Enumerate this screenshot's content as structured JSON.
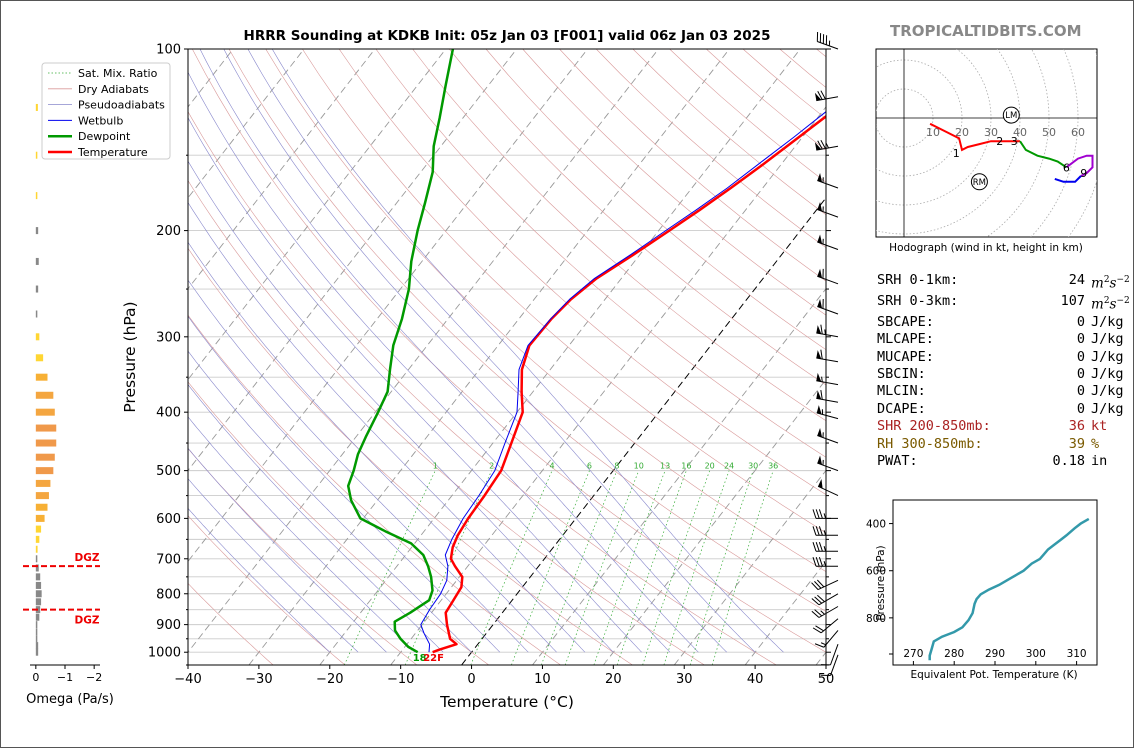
{
  "brand": "TROPICALTIDBITS.COM",
  "title": "HRRR Sounding at KDKB Init: 05z Jan 03 [F001] valid 06z Jan 03 2025",
  "chart_data": [
    {
      "type": "line",
      "name": "skewt",
      "xlabel": "Temperature (°C)",
      "ylabel": "Pressure (hPa)",
      "xlim": [
        -40,
        50
      ],
      "ylim": [
        1050,
        100
      ],
      "x_ticks": [
        -40,
        -30,
        -20,
        -10,
        0,
        10,
        20,
        30,
        40,
        50
      ],
      "x_tick_labels": [
        "−40",
        "−30",
        "−20",
        "−10",
        "0",
        "10",
        "20",
        "30",
        "40",
        "50"
      ],
      "y_ticks": [
        100,
        200,
        300,
        400,
        500,
        600,
        700,
        800,
        900,
        1000
      ],
      "mixing_ratio_labels": [
        "1",
        "2",
        "4",
        "6",
        "8",
        "10",
        "13",
        "16",
        "20",
        "24",
        "30",
        "36"
      ],
      "legend": [
        "Sat. Mix. Ratio",
        "Dry Adiabats",
        "Pseudoadiabats",
        "Wetbulb",
        "Dewpoint",
        "Temperature"
      ],
      "legend_position": "upper-left",
      "sfc_dewpoint_label": "18",
      "sfc_temp_label": "22F",
      "series": [
        {
          "name": "Temperature",
          "color": "#ff0000",
          "points": [
            [
              -5.5,
              1000
            ],
            [
              -4.8,
              990
            ],
            [
              -3.0,
              970
            ],
            [
              -4.5,
              950
            ],
            [
              -6.5,
              900
            ],
            [
              -8.0,
              860
            ],
            [
              -8.2,
              830
            ],
            [
              -8.6,
              780
            ],
            [
              -9.6,
              750
            ],
            [
              -11.8,
              720
            ],
            [
              -13.2,
              700
            ],
            [
              -14.2,
              670
            ],
            [
              -14.8,
              640
            ],
            [
              -15.2,
              600
            ],
            [
              -15.4,
              550
            ],
            [
              -15.8,
              500
            ],
            [
              -17.4,
              450
            ],
            [
              -19.2,
              400
            ],
            [
              -21.6,
              370
            ],
            [
              -24.0,
              340
            ],
            [
              -25.6,
              310
            ],
            [
              -25.4,
              280
            ],
            [
              -24.8,
              260
            ],
            [
              -23.5,
              240
            ],
            [
              -21.0,
              220
            ],
            [
              -18.5,
              200
            ],
            [
              -16.5,
              185
            ],
            [
              -14.5,
              170
            ],
            [
              -12.5,
              155
            ],
            [
              -10.5,
              140
            ],
            [
              -8.3,
              125
            ],
            [
              -6.5,
              115
            ],
            [
              -4.8,
              105
            ],
            [
              -4.0,
              100
            ]
          ]
        },
        {
          "name": "Wetbulb",
          "color": "#0000ee",
          "points": [
            [
              -6.0,
              1000
            ],
            [
              -6.8,
              970
            ],
            [
              -8.8,
              930
            ],
            [
              -10.2,
              900
            ],
            [
              -10.6,
              850
            ],
            [
              -10.8,
              800
            ],
            [
              -11.4,
              760
            ],
            [
              -12.8,
              720
            ],
            [
              -14.4,
              690
            ],
            [
              -15.2,
              650
            ],
            [
              -15.9,
              600
            ],
            [
              -16.2,
              550
            ],
            [
              -16.7,
              500
            ],
            [
              -18.3,
              450
            ],
            [
              -20.0,
              400
            ],
            [
              -22.1,
              370
            ],
            [
              -24.4,
              340
            ],
            [
              -25.8,
              310
            ],
            [
              -25.5,
              280
            ],
            [
              -25.0,
              260
            ],
            [
              -23.8,
              240
            ],
            [
              -21.4,
              220
            ],
            [
              -19.0,
              200
            ],
            [
              -17.0,
              185
            ],
            [
              -15.0,
              170
            ],
            [
              -13.2,
              155
            ],
            [
              -11.2,
              140
            ],
            [
              -9.2,
              125
            ],
            [
              -7.4,
              115
            ],
            [
              -5.8,
              105
            ],
            [
              -5.0,
              100
            ]
          ]
        },
        {
          "name": "Dewpoint",
          "color": "#009900",
          "points": [
            [
              -7.6,
              1000
            ],
            [
              -9.5,
              980
            ],
            [
              -11.5,
              950
            ],
            [
              -13.2,
              920
            ],
            [
              -14.2,
              890
            ],
            [
              -13.0,
              860
            ],
            [
              -11.7,
              820
            ],
            [
              -12.3,
              790
            ],
            [
              -14.0,
              750
            ],
            [
              -15.6,
              720
            ],
            [
              -17.5,
              690
            ],
            [
              -20.5,
              660
            ],
            [
              -25.5,
              630
            ],
            [
              -30.4,
              600
            ],
            [
              -33.7,
              560
            ],
            [
              -35.7,
              530
            ],
            [
              -36.6,
              500
            ],
            [
              -37.8,
              470
            ],
            [
              -38.6,
              440
            ],
            [
              -39.6,
              400
            ],
            [
              -40.5,
              370
            ],
            [
              -42.6,
              340
            ],
            [
              -44.8,
              310
            ],
            [
              -46.5,
              280
            ],
            [
              -48.8,
              250
            ],
            [
              -51.5,
              225
            ],
            [
              -54.0,
              200
            ],
            [
              -56.0,
              180
            ],
            [
              -58.3,
              160
            ],
            [
              -61.0,
              145
            ],
            [
              -63.3,
              130
            ],
            [
              -66.0,
              115
            ],
            [
              -69.0,
              100
            ]
          ]
        }
      ],
      "wind_barbs": [
        {
          "p": 100,
          "dir": 290,
          "spd": 45
        },
        {
          "p": 120,
          "dir": 260,
          "spd": 70
        },
        {
          "p": 145,
          "dir": 260,
          "spd": 75
        },
        {
          "p": 170,
          "dir": 290,
          "spd": 55
        },
        {
          "p": 190,
          "dir": 290,
          "spd": 55
        },
        {
          "p": 215,
          "dir": 290,
          "spd": 55
        },
        {
          "p": 245,
          "dir": 290,
          "spd": 60
        },
        {
          "p": 275,
          "dir": 290,
          "spd": 60
        },
        {
          "p": 300,
          "dir": 280,
          "spd": 65
        },
        {
          "p": 330,
          "dir": 280,
          "spd": 60
        },
        {
          "p": 360,
          "dir": 280,
          "spd": 55
        },
        {
          "p": 385,
          "dir": 280,
          "spd": 60
        },
        {
          "p": 410,
          "dir": 285,
          "spd": 55
        },
        {
          "p": 450,
          "dir": 290,
          "spd": 55
        },
        {
          "p": 500,
          "dir": 290,
          "spd": 55
        },
        {
          "p": 550,
          "dir": 295,
          "spd": 50
        },
        {
          "p": 600,
          "dir": 270,
          "spd": 35
        },
        {
          "p": 640,
          "dir": 270,
          "spd": 35
        },
        {
          "p": 680,
          "dir": 270,
          "spd": 35
        },
        {
          "p": 720,
          "dir": 270,
          "spd": 35
        },
        {
          "p": 760,
          "dir": 245,
          "spd": 30
        },
        {
          "p": 800,
          "dir": 240,
          "spd": 30
        },
        {
          "p": 840,
          "dir": 240,
          "spd": 25
        },
        {
          "p": 880,
          "dir": 230,
          "spd": 20
        },
        {
          "p": 920,
          "dir": 220,
          "spd": 15
        },
        {
          "p": 970,
          "dir": 200,
          "spd": 10
        },
        {
          "p": 1010,
          "dir": 200,
          "spd": 10
        }
      ]
    },
    {
      "type": "bar",
      "name": "omega",
      "xlabel": "Omega (Pa/s)",
      "x_tick_labels": [
        "0",
        "−1",
        "−2"
      ],
      "xlim": [
        0.2,
        -2.2
      ],
      "dgz_label": "DGZ",
      "dgz_levels": [
        720,
        850
      ],
      "levels": [
        1000,
        975,
        950,
        925,
        900,
        875,
        850,
        825,
        800,
        775,
        750,
        725,
        700,
        675,
        650,
        625,
        600,
        575,
        550,
        525,
        500,
        475,
        450,
        425,
        400,
        375,
        350,
        325,
        300,
        275,
        250,
        225,
        200,
        175,
        150,
        125
      ],
      "values": [
        -0.08,
        -0.08,
        -0.05,
        -0.03,
        -0.05,
        -0.12,
        -0.15,
        -0.18,
        -0.2,
        -0.18,
        -0.15,
        -0.1,
        -0.04,
        -0.06,
        -0.12,
        -0.18,
        -0.3,
        -0.4,
        -0.45,
        -0.5,
        -0.6,
        -0.65,
        -0.7,
        -0.7,
        -0.65,
        -0.6,
        -0.4,
        -0.25,
        -0.12,
        -0.05,
        -0.08,
        -0.1,
        -0.08,
        -0.04,
        -0.05,
        -0.07
      ],
      "colors": [
        "#888888",
        "#888888",
        "#888888",
        "#888888",
        "#888888",
        "#888888",
        "#888888",
        "#888888",
        "#888888",
        "#888888",
        "#888888",
        "#888888",
        "#888888",
        "#ffd633",
        "#ffd633",
        "#ffd633",
        "#f7b035",
        "#f7b035",
        "#f4a640",
        "#f4a640",
        "#f0994a",
        "#f0994a",
        "#f0994a",
        "#f0994a",
        "#f4a640",
        "#f4a640",
        "#f7b035",
        "#ffd633",
        "#ffd633",
        "#888888",
        "#888888",
        "#888888",
        "#888888",
        "#ffd633",
        "#ffd633",
        "#ffd633"
      ]
    },
    {
      "type": "line",
      "name": "hodograph",
      "xlabel": "Hodograph (wind in kt, height in km)",
      "ring_labels": [
        "10",
        "20",
        "30",
        "40",
        "50",
        "60"
      ],
      "storm_motion_labels": [
        "LM",
        "RM"
      ],
      "lm": [
        37,
        1
      ],
      "rm": [
        26,
        -22
      ],
      "height_labels": [
        {
          "t": "1",
          "u": 18,
          "v": -12
        },
        {
          "t": "2",
          "u": 33,
          "v": -8
        },
        {
          "t": "3",
          "u": 38,
          "v": -8
        },
        {
          "t": "6",
          "u": 56,
          "v": -17
        },
        {
          "t": "9",
          "u": 62,
          "v": -19
        }
      ],
      "segments": [
        {
          "color": "#ff0000",
          "points": [
            [
              9,
              -2
            ],
            [
              15,
              -5
            ],
            [
              19,
              -7
            ],
            [
              20,
              -11
            ],
            [
              22,
              -10
            ],
            [
              26,
              -9
            ],
            [
              30,
              -8
            ],
            [
              34,
              -8
            ],
            [
              38,
              -8
            ],
            [
              40,
              -8
            ]
          ]
        },
        {
          "color": "#009900",
          "points": [
            [
              40,
              -8
            ],
            [
              42,
              -11
            ],
            [
              46,
              -13
            ],
            [
              50,
              -14
            ],
            [
              53,
              -15
            ],
            [
              56,
              -17
            ]
          ]
        },
        {
          "color": "#a000d0",
          "points": [
            [
              56,
              -17
            ],
            [
              60,
              -14
            ],
            [
              63,
              -13
            ],
            [
              65,
              -13
            ],
            [
              65,
              -17
            ],
            [
              63,
              -19
            ],
            [
              61,
              -20
            ]
          ]
        },
        {
          "color": "#0000ee",
          "points": [
            [
              61,
              -20
            ],
            [
              59,
              -22
            ],
            [
              55,
              -22
            ],
            [
              52,
              -21
            ]
          ]
        }
      ]
    },
    {
      "type": "line",
      "name": "theta-e",
      "xlabel": "Equivalent Pot. Temperature (K)",
      "ylabel": "Pressure (hPa)",
      "xlim": [
        265,
        315
      ],
      "ylim": [
        1000,
        300
      ],
      "x_ticks": [
        270,
        280,
        290,
        300,
        310
      ],
      "y_ticks": [
        400,
        600,
        800
      ],
      "color": "#3399aa",
      "points": [
        [
          274,
          980
        ],
        [
          274,
          960
        ],
        [
          274.5,
          930
        ],
        [
          275,
          900
        ],
        [
          277,
          880
        ],
        [
          280,
          860
        ],
        [
          282,
          840
        ],
        [
          283.5,
          810
        ],
        [
          284.5,
          780
        ],
        [
          285,
          740
        ],
        [
          285.5,
          720
        ],
        [
          286.5,
          700
        ],
        [
          288.5,
          680
        ],
        [
          291,
          660
        ],
        [
          294,
          630
        ],
        [
          297,
          600
        ],
        [
          299,
          570
        ],
        [
          301,
          550
        ],
        [
          302,
          530
        ],
        [
          303,
          510
        ],
        [
          304.5,
          490
        ],
        [
          306,
          470
        ],
        [
          307.5,
          450
        ],
        [
          309.5,
          420
        ],
        [
          311,
          400
        ],
        [
          313,
          380
        ],
        [
          316,
          365
        ],
        [
          320,
          350
        ],
        [
          325,
          340
        ]
      ]
    }
  ],
  "stats": [
    {
      "label": "SRH 0-1km:",
      "value": "24",
      "unit": "m2s-2",
      "color": "#000000"
    },
    {
      "label": "SRH 0-3km:",
      "value": "107",
      "unit": "m2s-2",
      "color": "#000000"
    },
    {
      "label": "SBCAPE:",
      "value": "0",
      "unit": "J/kg",
      "color": "#000000"
    },
    {
      "label": "MLCAPE:",
      "value": "0",
      "unit": "J/kg",
      "color": "#000000"
    },
    {
      "label": "MUCAPE:",
      "value": "0",
      "unit": "J/kg",
      "color": "#000000"
    },
    {
      "label": "SBCIN:",
      "value": "0",
      "unit": "J/kg",
      "color": "#000000"
    },
    {
      "label": "MLCIN:",
      "value": "0",
      "unit": "J/kg",
      "color": "#000000"
    },
    {
      "label": "DCAPE:",
      "value": "0",
      "unit": "J/kg",
      "color": "#000000"
    },
    {
      "label": "SHR 200-850mb:",
      "value": "36",
      "unit": "kt",
      "color": "#aa2222"
    },
    {
      "label": "RH 300-850mb:",
      "value": "39",
      "unit": "%",
      "color": "#7a5a00"
    },
    {
      "label": "PWAT:",
      "value": "0.18",
      "unit": "in",
      "color": "#000000"
    }
  ]
}
